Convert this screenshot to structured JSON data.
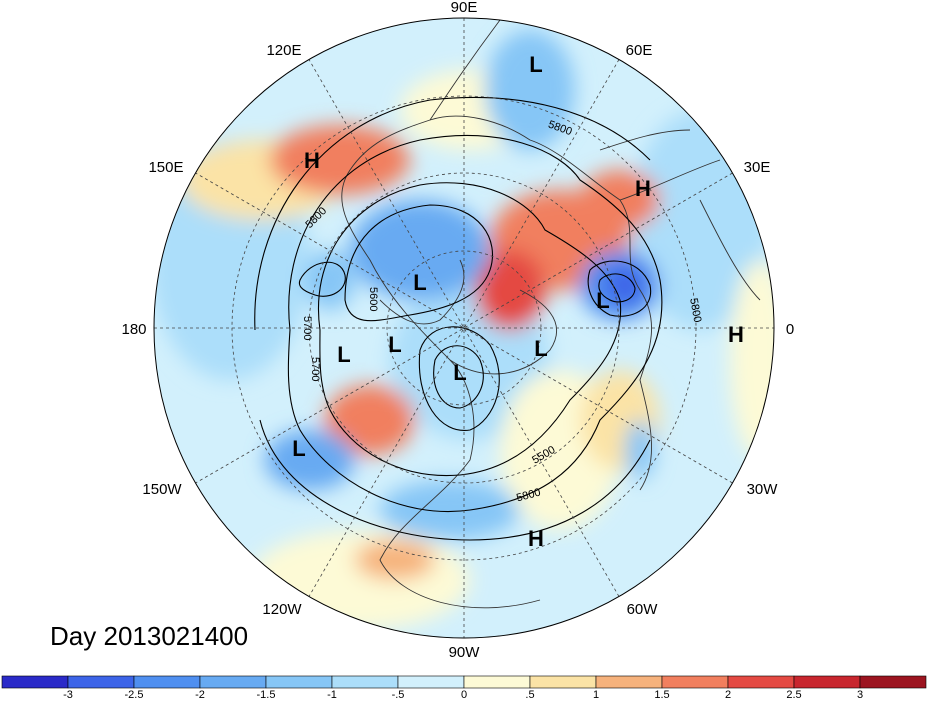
{
  "map": {
    "day_prefix": "Day",
    "day_value": "2013021400",
    "longitude_labels": [
      "90E",
      "60E",
      "30E",
      "0",
      "30W",
      "60W",
      "90W",
      "120W",
      "150W",
      "180",
      "150E",
      "120E"
    ],
    "contour_labels": [
      "5800",
      "5800",
      "5800",
      "5800",
      "5700",
      "5700",
      "5600",
      "5500"
    ],
    "systems": [
      {
        "type": "L",
        "name": "low-north-scandinavia"
      },
      {
        "type": "H",
        "name": "high-east-asia"
      },
      {
        "type": "H",
        "name": "high-russia"
      },
      {
        "type": "L",
        "name": "low-siberia"
      },
      {
        "type": "L",
        "name": "low-east-europe"
      },
      {
        "type": "H",
        "name": "high-west-africa"
      },
      {
        "type": "L",
        "name": "low-bering"
      },
      {
        "type": "L",
        "name": "low-alaska"
      },
      {
        "type": "L",
        "name": "low-hudson"
      },
      {
        "type": "L",
        "name": "low-greenland"
      },
      {
        "type": "L",
        "name": "low-north-pacific"
      },
      {
        "type": "H",
        "name": "high-caribbean"
      }
    ]
  },
  "colorbar": {
    "ticks": [
      "-3",
      "-2.5",
      "-2",
      "-1.5",
      "-1",
      "-.5",
      "0",
      ".5",
      "1",
      "1.5",
      "2",
      "2.5",
      "3"
    ],
    "colors": [
      "#2a2ac8",
      "#3c64e8",
      "#4f8ff0",
      "#67aaf2",
      "#86c6f6",
      "#acdefa",
      "#d2f0fc",
      "#fdfad6",
      "#fbe3a6",
      "#f6b27c",
      "#f17f5e",
      "#e44a43",
      "#c8262e",
      "#9c1420"
    ]
  }
}
